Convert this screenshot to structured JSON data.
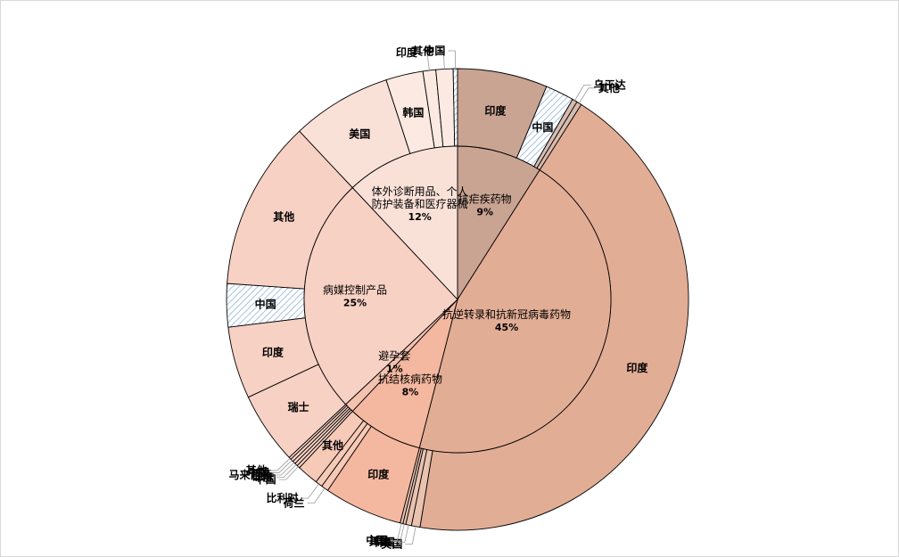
{
  "chart_data": {
    "type": "pie",
    "inner_ring": {
      "slices": [
        {
          "name": "抗疟疾药物",
          "pct_label": "9%",
          "value": 9,
          "color": "#c9a493"
        },
        {
          "name": "抗逆转录和抗新冠病毒药物",
          "pct_label": "45%",
          "value": 45,
          "color": "#e2ad95"
        },
        {
          "name": "抗结核病药物",
          "pct_label": "8%",
          "value": 8,
          "color": "#f4b79f"
        },
        {
          "name": "避孕套",
          "pct_label": "1%",
          "value": 1,
          "color": "#f3c3b0"
        },
        {
          "name": "病媒控制产品",
          "pct_label": "25%",
          "value": 25,
          "color": "#f7d1c3"
        },
        {
          "name": "体外诊断用品、个人防护装备和医疗器械",
          "pct_label": "12%",
          "value": 12,
          "color": "#fae1d8"
        }
      ]
    },
    "outer_ring": {
      "slices": [
        {
          "name": "印度",
          "value": 6.3,
          "parent": 0,
          "label_style": "inside"
        },
        {
          "name": "中国",
          "value": 2.0,
          "parent": 0,
          "label_style": "inside",
          "hatched": true
        },
        {
          "name": "乌干达",
          "value": 0.35,
          "parent": 0,
          "label_style": "leader"
        },
        {
          "name": "其他",
          "value": 0.35,
          "parent": 0,
          "label_style": "leader"
        },
        {
          "name": "印度",
          "value": 43.6,
          "parent": 1,
          "label_style": "inside"
        },
        {
          "name": "美国",
          "value": 0.6,
          "parent": 1,
          "label_style": "leader"
        },
        {
          "name": "韩国",
          "value": 0.4,
          "parent": 1,
          "label_style": "leader"
        },
        {
          "name": "其他",
          "value": 0.2,
          "parent": 1,
          "label_style": "leader"
        },
        {
          "name": "中国",
          "value": 0.2,
          "parent": 1,
          "label_style": "leader"
        },
        {
          "name": "印度",
          "value": 5.5,
          "parent": 2,
          "label_style": "inside"
        },
        {
          "name": "荷兰",
          "value": 0.5,
          "parent": 2,
          "label_style": "leader"
        },
        {
          "name": "比利时",
          "value": 0.5,
          "parent": 2,
          "label_style": "leader"
        },
        {
          "name": "其他",
          "value": 1.5,
          "parent": 2,
          "label_style": "inside"
        },
        {
          "name": "中国",
          "value": 0.25,
          "parent": 3,
          "label_style": "leader"
        },
        {
          "name": "印度",
          "value": 0.25,
          "parent": 3,
          "label_style": "leader"
        },
        {
          "name": "马来西亚",
          "value": 0.25,
          "parent": 3,
          "label_style": "leader"
        },
        {
          "name": "中国",
          "value": 0.25,
          "parent": 3,
          "label_style": "leader"
        },
        {
          "name": "其他",
          "value": 0.2,
          "parent": 3,
          "label_style": "leader"
        },
        {
          "name": "瑞士",
          "value": 5.0,
          "parent": 4,
          "label_style": "inside"
        },
        {
          "name": "印度",
          "value": 5.0,
          "parent": 4,
          "label_style": "inside"
        },
        {
          "name": "中国",
          "value": 3.0,
          "parent": 4,
          "label_style": "inside",
          "hatched": true
        },
        {
          "name": "其他",
          "value": 11.8,
          "parent": 4,
          "label_style": "inside"
        },
        {
          "name": "美国",
          "value": 7.0,
          "parent": 5,
          "label_style": "inside"
        },
        {
          "name": "韩国",
          "value": 2.6,
          "parent": 5,
          "label_style": "inside"
        },
        {
          "name": "印度",
          "value": 0.9,
          "parent": 5,
          "label_style": "leader"
        },
        {
          "name": "其他",
          "value": 1.2,
          "parent": 5,
          "label_style": "leader"
        },
        {
          "name": "中国",
          "value": 0.3,
          "parent": 5,
          "label_style": "leader",
          "hatched": true
        }
      ]
    },
    "hatch_color": "#8fb3d6",
    "legend": "none",
    "title": ""
  }
}
